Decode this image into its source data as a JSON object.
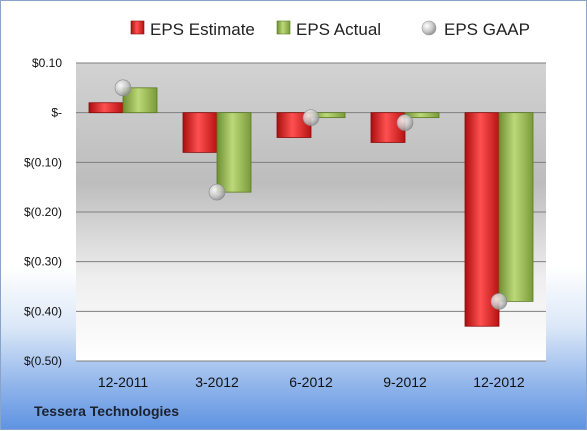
{
  "company": "Tessera Technologies",
  "colors": {
    "estimate": "#d81e1e",
    "actual": "#8cb04a",
    "gaap": "#c8c8c8"
  },
  "chart_data": {
    "type": "bar",
    "categories": [
      "12-2011",
      "3-2012",
      "6-2012",
      "9-2012",
      "12-2012"
    ],
    "series": [
      {
        "name": "EPS Estimate",
        "type": "bar",
        "values": [
          0.02,
          -0.08,
          -0.05,
          -0.06,
          -0.43
        ]
      },
      {
        "name": "EPS Actual",
        "type": "bar",
        "values": [
          0.05,
          -0.16,
          -0.01,
          -0.01,
          -0.38
        ]
      },
      {
        "name": "EPS GAAP",
        "type": "marker",
        "values": [
          0.05,
          -0.16,
          -0.01,
          -0.02,
          -0.38
        ]
      }
    ],
    "ylim": [
      -0.5,
      0.1
    ],
    "yticks": [
      0.1,
      0.0,
      -0.1,
      -0.2,
      -0.3,
      -0.4,
      -0.5
    ],
    "ytick_labels": [
      "$0.10",
      "$-",
      "$(0.10)",
      "$(0.20)",
      "$(0.30)",
      "$(0.40)",
      "$(0.50)"
    ],
    "legend_position": "top",
    "grid": true
  }
}
